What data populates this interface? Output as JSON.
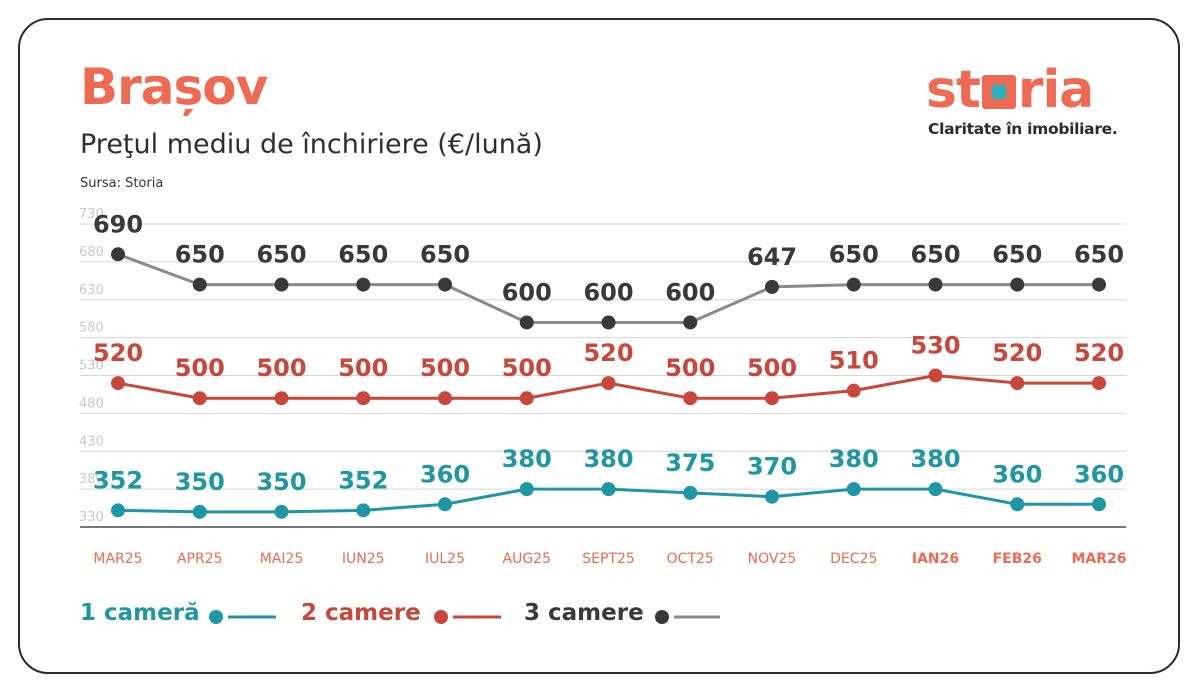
{
  "header": {
    "title": "Brașov",
    "subtitle": "Preţul mediu de închiriere (€/lună)",
    "source": "Sursa: Storia"
  },
  "logo": {
    "word_left": "st",
    "word_right": "ria",
    "tagline": "Claritate în imobiliare."
  },
  "colors": {
    "accent": "#ef6a52",
    "series_1": "#1f96a3",
    "series_2": "#c9463a",
    "series_3": "#393939",
    "line_3": "#8a8a8a"
  },
  "chart_data": {
    "type": "line",
    "categories": [
      "MAR25",
      "APR25",
      "MAI25",
      "IUN25",
      "IUL25",
      "AUG25",
      "SEPT25",
      "OCT25",
      "NOV25",
      "DEC25",
      "IAN26",
      "FEB26",
      "MAR26"
    ],
    "bold_categories": [
      "IAN26",
      "FEB26",
      "MAR26"
    ],
    "y_ticks": [
      330,
      380,
      430,
      480,
      530,
      580,
      630,
      680,
      730
    ],
    "ylim": [
      330,
      730
    ],
    "grid": true,
    "legend_position": "bottom-left",
    "series": [
      {
        "name": "1 cameră",
        "values": [
          352,
          350,
          350,
          352,
          360,
          380,
          380,
          375,
          370,
          380,
          380,
          360,
          360
        ]
      },
      {
        "name": "2 camere",
        "values": [
          520,
          500,
          500,
          500,
          500,
          500,
          520,
          500,
          500,
          510,
          530,
          520,
          520
        ]
      },
      {
        "name": "3 camere",
        "values": [
          690,
          650,
          650,
          650,
          650,
          600,
          600,
          600,
          647,
          650,
          650,
          650,
          650
        ]
      }
    ]
  }
}
